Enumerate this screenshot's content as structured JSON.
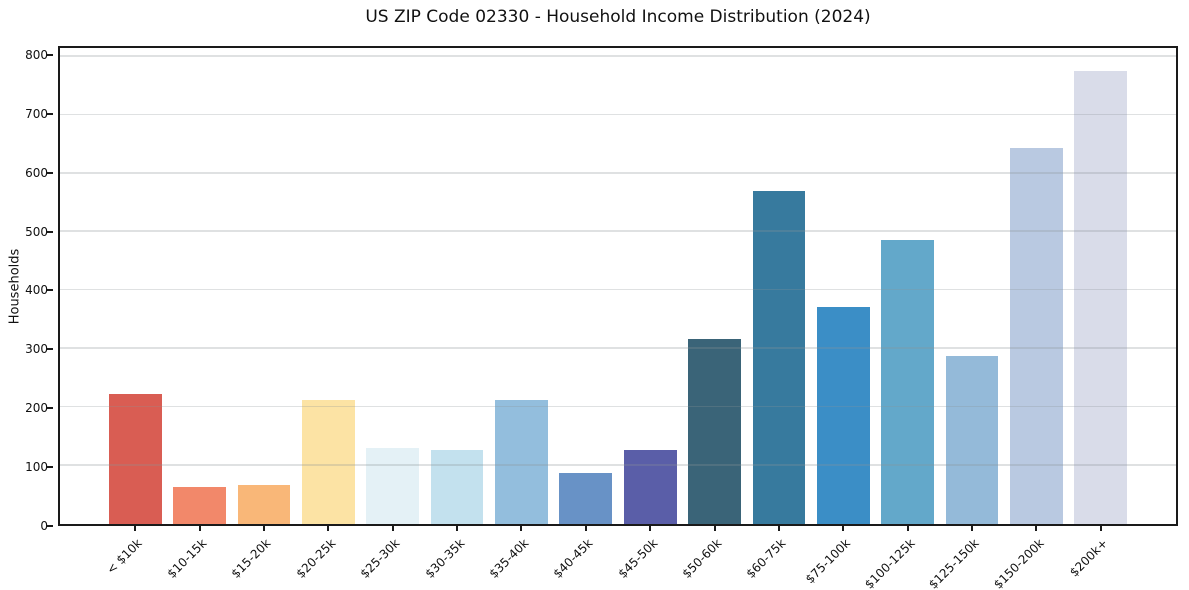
{
  "chart_data": {
    "type": "bar",
    "title": "US ZIP Code 02330 - Household Income Distribution (2024)",
    "xlabel": "",
    "ylabel": "Households",
    "categories": [
      "< $10k",
      "$10-15k",
      "$15-20k",
      "$20-25k",
      "$25-30k",
      "$30-35k",
      "$35-40k",
      "$40-45k",
      "$45-50k",
      "$50-60k",
      "$60-75k",
      "$75-100k",
      "$100-125k",
      "$125-150k",
      "$150-200k",
      "$200k+"
    ],
    "values": [
      222,
      63,
      67,
      213,
      131,
      126,
      213,
      88,
      127,
      316,
      570,
      372,
      486,
      287,
      643,
      776
    ],
    "bar_colors": [
      "#d95d53",
      "#f2886a",
      "#f9b778",
      "#fce3a4",
      "#e4f1f6",
      "#c3e1ee",
      "#93bedd",
      "#6892c6",
      "#5a5ea8",
      "#3a6478",
      "#377a9e",
      "#3b8ec6",
      "#63a8ca",
      "#94bad9",
      "#b9c9e1",
      "#d9dce9"
    ],
    "yticks": [
      0,
      100,
      200,
      300,
      400,
      500,
      600,
      700,
      800
    ],
    "ylim": [
      0,
      815
    ],
    "grid": "horizontal",
    "legend": "none",
    "x_tick_rotation": 45
  },
  "style": {
    "background_color": "#ffffff",
    "spine_color": "#1a1a1a",
    "gridline_color": "#e0e3e6",
    "text_color": "#111111"
  }
}
